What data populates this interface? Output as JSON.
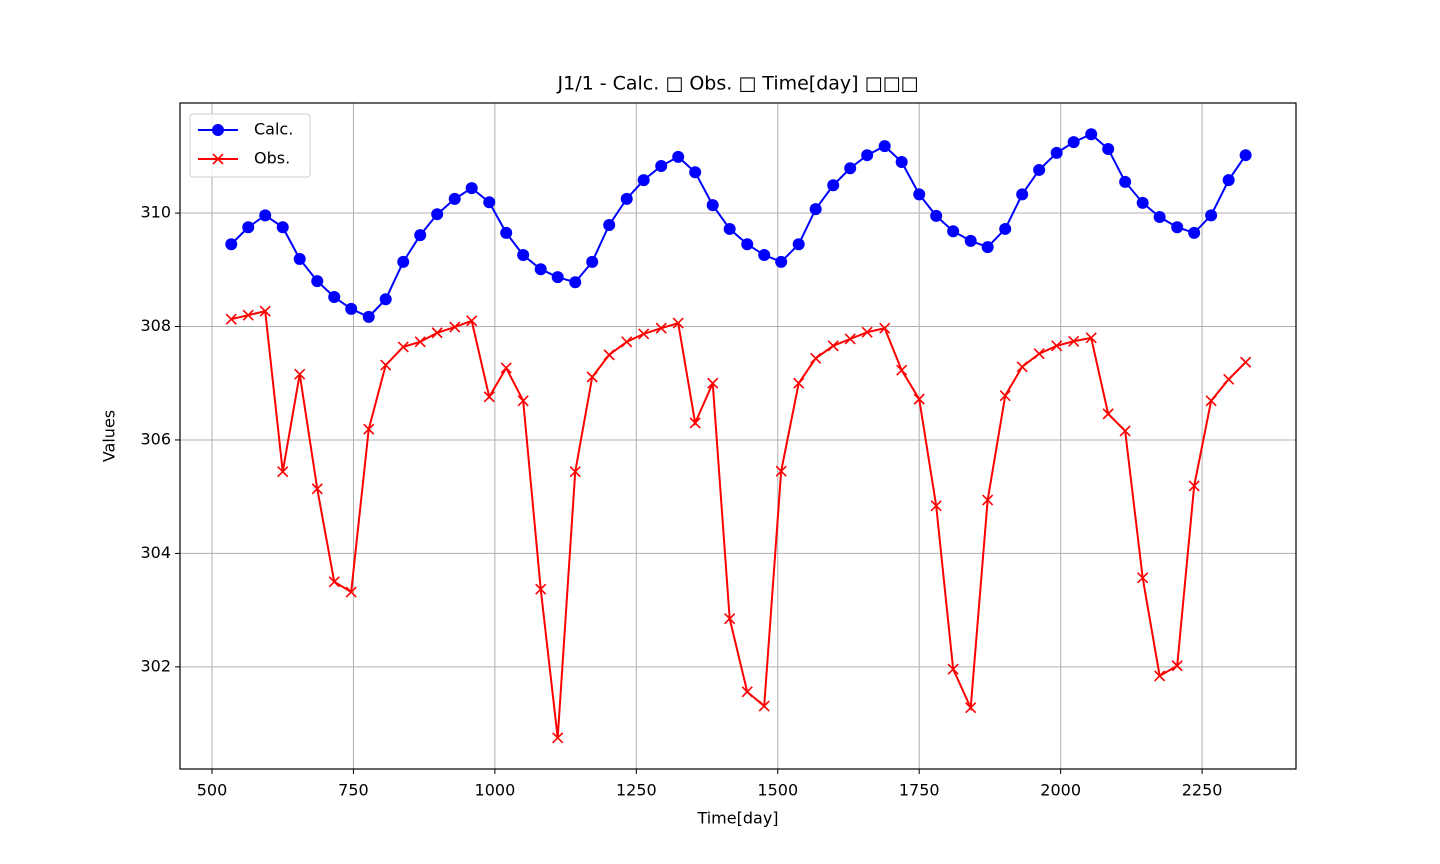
{
  "chart_data": {
    "type": "line",
    "title": "J1/1 - Calc. □ Obs. □ Time[day] □□□",
    "xlabel": "Time[day]",
    "ylabel": "Values",
    "x": [
      534,
      564,
      594,
      625,
      655,
      686,
      716,
      746,
      777,
      807,
      838,
      868,
      898,
      929,
      959,
      990,
      1020,
      1050,
      1081,
      1111,
      1142,
      1172,
      1202,
      1233,
      1263,
      1294,
      1324,
      1354,
      1385,
      1415,
      1446,
      1476,
      1506,
      1537,
      1567,
      1598,
      1628,
      1658,
      1689,
      1719,
      1750,
      1780,
      1810,
      1841,
      1871,
      1902,
      1932,
      1962,
      1993,
      2023,
      2054,
      2084,
      2114,
      2145,
      2175,
      2206,
      2236,
      2266,
      2297,
      2327
    ],
    "series": [
      {
        "name": "Calc.",
        "color": "#0000ff",
        "marker": "o",
        "values": [
          309.45,
          309.75,
          309.96,
          309.75,
          309.19,
          308.8,
          308.52,
          308.31,
          308.17,
          308.48,
          309.14,
          309.61,
          309.98,
          310.25,
          310.44,
          310.19,
          309.65,
          309.26,
          309.01,
          308.87,
          308.78,
          309.14,
          309.79,
          310.25,
          310.58,
          310.83,
          310.99,
          310.72,
          310.14,
          309.72,
          309.45,
          309.26,
          309.14,
          309.45,
          310.07,
          310.49,
          310.79,
          311.02,
          311.18,
          310.9,
          310.33,
          309.95,
          309.68,
          309.51,
          309.4,
          309.72,
          310.33,
          310.76,
          311.06,
          311.25,
          311.39,
          311.13,
          310.55,
          310.18,
          309.93,
          309.75,
          309.65,
          309.96,
          310.58,
          311.02
        ]
      },
      {
        "name": "Obs.",
        "color": "#ff0000",
        "marker": "x",
        "values": [
          308.13,
          308.2,
          308.27,
          305.44,
          307.16,
          305.14,
          303.5,
          303.32,
          306.19,
          307.32,
          307.64,
          307.73,
          307.89,
          307.99,
          308.1,
          306.76,
          307.27,
          306.69,
          303.37,
          300.75,
          305.44,
          307.11,
          307.5,
          307.73,
          307.87,
          307.97,
          308.06,
          306.3,
          307.0,
          302.85,
          301.56,
          301.31,
          305.45,
          307.0,
          307.44,
          307.66,
          307.78,
          307.9,
          307.97,
          307.23,
          306.72,
          304.84,
          301.96,
          301.28,
          304.94,
          306.78,
          307.29,
          307.52,
          307.66,
          307.74,
          307.8,
          306.46,
          306.16,
          303.57,
          301.84,
          302.02,
          305.19,
          306.69,
          307.07,
          307.37
        ]
      }
    ],
    "xlim": [
      443.4,
      2416
    ],
    "ylim": [
      300.2,
      311.94
    ],
    "xticks": [
      500,
      750,
      1000,
      1250,
      1500,
      1750,
      2000,
      2250
    ],
    "yticks": [
      302,
      304,
      306,
      308,
      310
    ],
    "grid": true,
    "legend": "upper left"
  }
}
